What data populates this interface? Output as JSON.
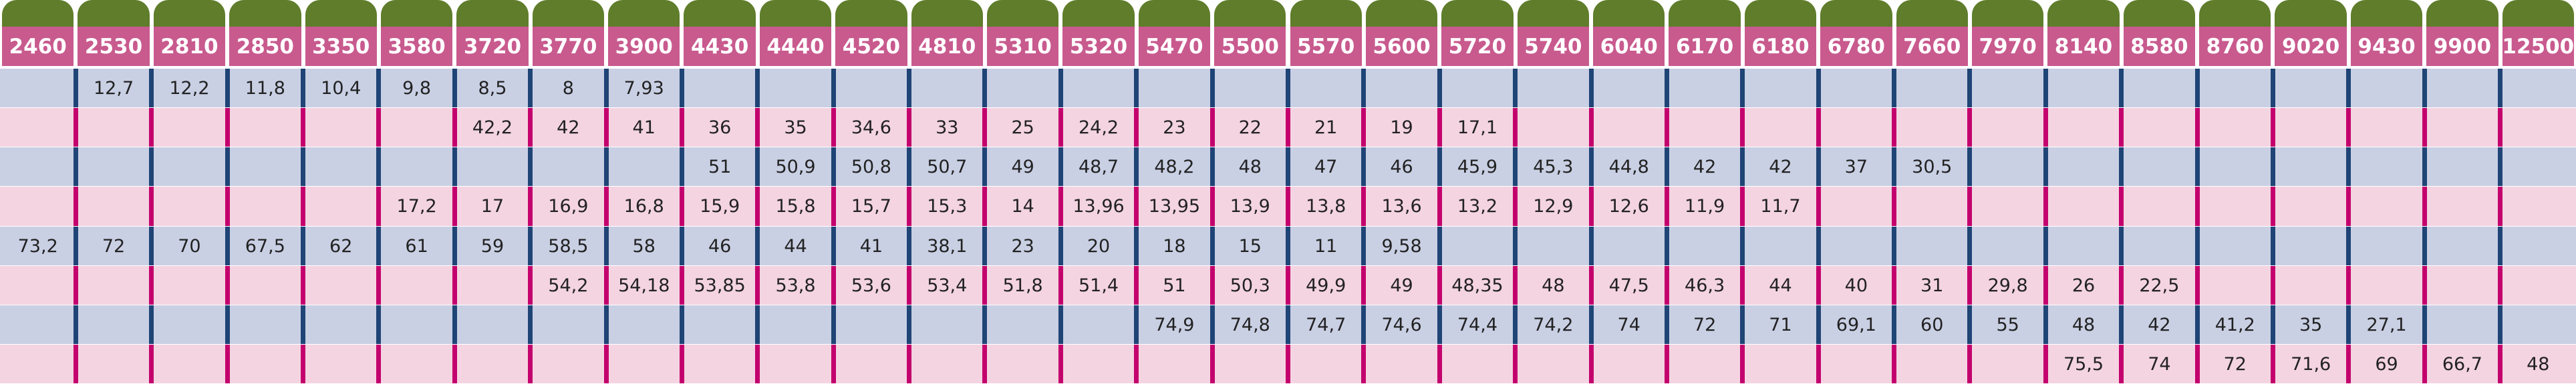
{
  "columns": [
    "2460",
    "2530",
    "2810",
    "2850",
    "3350",
    "3580",
    "3720",
    "3770",
    "3900",
    "4430",
    "4440",
    "4520",
    "4810",
    "5310",
    "5320",
    "5470",
    "5500",
    "5570",
    "5600",
    "5720",
    "5740",
    "6040",
    "6170",
    "6180",
    "6780",
    "7660",
    "7970",
    "8140",
    "8580",
    "8760",
    "9020",
    "9430",
    "9900",
    "12500"
  ],
  "rows": [
    [
      null,
      "12,7",
      "12,2",
      "11,8",
      "10,4",
      "9,8",
      "8,5",
      "8",
      "7,93",
      null,
      null,
      null,
      null,
      null,
      null,
      null,
      null,
      null,
      null,
      null,
      null,
      null,
      null,
      null,
      null,
      null,
      null,
      null,
      null,
      null,
      null,
      null,
      null,
      null
    ],
    [
      null,
      null,
      null,
      null,
      null,
      null,
      "42,2",
      "42",
      "41",
      "36",
      "35",
      "34,6",
      "33",
      "25",
      "24,2",
      "23",
      "22",
      "21",
      "19",
      "17,1",
      null,
      null,
      null,
      null,
      null,
      null,
      null,
      null,
      null,
      null,
      null,
      null,
      null,
      null
    ],
    [
      null,
      null,
      null,
      null,
      null,
      null,
      null,
      null,
      null,
      "51",
      "50,9",
      "50,8",
      "50,7",
      "49",
      "48,7",
      "48,2",
      "48",
      "47",
      "46",
      "45,9",
      "45,3",
      "44,8",
      "42",
      "42",
      "37",
      "30,5",
      null,
      null,
      null,
      null,
      null,
      null,
      null,
      null
    ],
    [
      null,
      null,
      null,
      null,
      null,
      "17,2",
      "17",
      "16,9",
      "16,8",
      "15,9",
      "15,8",
      "15,7",
      "15,3",
      "14",
      "13,96",
      "13,95",
      "13,9",
      "13,8",
      "13,6",
      "13,2",
      "12,9",
      "12,6",
      "11,9",
      "11,7",
      null,
      null,
      null,
      null,
      null,
      null,
      null,
      null,
      null,
      null
    ],
    [
      "73,2",
      "72",
      "70",
      "67,5",
      "62",
      "61",
      "59",
      "58,5",
      "58",
      "46",
      "44",
      "41",
      "38,1",
      "23",
      "20",
      "18",
      "15",
      "11",
      "9,58",
      null,
      null,
      null,
      null,
      null,
      null,
      null,
      null,
      null,
      null,
      null,
      null,
      null,
      null,
      null
    ],
    [
      null,
      null,
      null,
      null,
      null,
      null,
      null,
      "54,2",
      "54,18",
      "53,85",
      "53,8",
      "53,6",
      "53,4",
      "51,8",
      "51,4",
      "51",
      "50,3",
      "49,9",
      "49",
      "48,35",
      "48",
      "47,5",
      "46,3",
      "44",
      "40",
      "31",
      "29,8",
      "26",
      "22,5",
      null,
      null,
      null,
      null,
      null
    ],
    [
      null,
      null,
      null,
      null,
      null,
      null,
      null,
      null,
      null,
      null,
      null,
      null,
      null,
      null,
      null,
      "74,9",
      "74,8",
      "74,7",
      "74,6",
      "74,4",
      "74,2",
      "74",
      "72",
      "71",
      "69,1",
      "60",
      "55",
      "48",
      "42",
      "41,2",
      "35",
      "27,1",
      null,
      null
    ],
    [
      null,
      null,
      null,
      null,
      null,
      null,
      null,
      null,
      null,
      null,
      null,
      null,
      null,
      null,
      null,
      null,
      null,
      null,
      null,
      null,
      null,
      null,
      null,
      null,
      null,
      null,
      null,
      "75,5",
      "74",
      "72",
      "71,6",
      "69",
      "66,7",
      "48"
    ]
  ]
}
